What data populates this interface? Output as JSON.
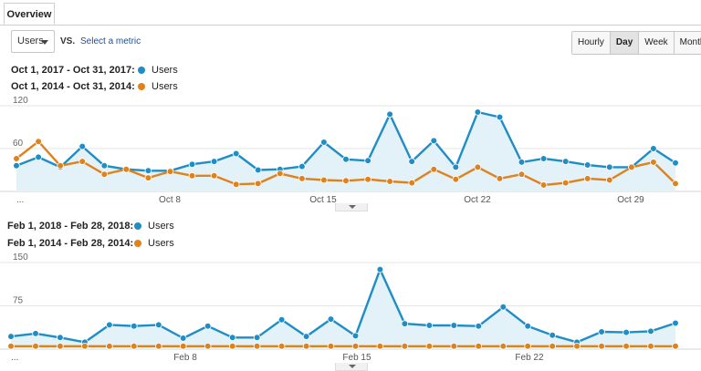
{
  "tabs": [
    {
      "label": "Overview"
    }
  ],
  "controls": {
    "metric_select": "Users",
    "vs_label": "VS.",
    "select_metric_link": "Select a metric",
    "granularity": [
      "Hourly",
      "Day",
      "Week",
      "Month"
    ],
    "active_granularity": "Day"
  },
  "colors": {
    "blue": "#1f8dc6",
    "orange": "#e0821b",
    "fill": "#e3f1f8",
    "grid": "#e6e6e6"
  },
  "chart_data": [
    {
      "type": "line",
      "legend": [
        {
          "date_range": "Oct 1, 2017 - Oct 31, 2017:",
          "series": "Users"
        },
        {
          "date_range": "Oct 1, 2014 - Oct 31, 2014:",
          "series": "Users"
        }
      ],
      "y_ticks": [
        "120",
        "60"
      ],
      "ylim": [
        0,
        120
      ],
      "x_ticks": [
        "...",
        "Oct 8",
        "Oct 15",
        "Oct 22",
        "Oct 29"
      ],
      "series": [
        {
          "name": "Users",
          "color": "blue",
          "values": [
            36,
            48,
            34,
            63,
            36,
            31,
            29,
            29,
            38,
            42,
            53,
            30,
            31,
            35,
            69,
            45,
            43,
            108,
            42,
            71,
            34,
            111,
            104,
            41,
            46,
            42,
            37,
            34,
            34,
            60,
            40
          ]
        },
        {
          "name": "Users",
          "color": "orange",
          "values": [
            46,
            70,
            36,
            42,
            24,
            31,
            19,
            28,
            22,
            22,
            10,
            11,
            25,
            18,
            16,
            15,
            17,
            14,
            12,
            31,
            17,
            34,
            18,
            24,
            9,
            12,
            18,
            16,
            34,
            41,
            11
          ]
        }
      ]
    },
    {
      "type": "line",
      "legend": [
        {
          "date_range": "Feb 1, 2018 - Feb 28, 2018:",
          "series": "Users"
        },
        {
          "date_range": "Feb 1, 2014 - Feb 28, 2014:",
          "series": "Users"
        }
      ],
      "y_ticks": [
        "150",
        "75"
      ],
      "ylim": [
        0,
        150
      ],
      "x_ticks": [
        "...",
        "Feb 8",
        "Feb 15",
        "Feb 22"
      ],
      "series": [
        {
          "name": "Users",
          "color": "blue",
          "values": [
            22,
            27,
            20,
            12,
            42,
            40,
            42,
            19,
            40,
            20,
            20,
            51,
            22,
            52,
            23,
            138,
            44,
            41,
            41,
            40,
            73,
            40,
            24,
            12,
            30,
            29,
            31,
            45
          ]
        },
        {
          "name": "Users",
          "color": "orange",
          "values": [
            5,
            5,
            5,
            5,
            5,
            5,
            5,
            5,
            5,
            5,
            5,
            5,
            5,
            5,
            5,
            5,
            5,
            5,
            5,
            5,
            5,
            5,
            5,
            5,
            5,
            5,
            5,
            5
          ]
        }
      ]
    }
  ]
}
